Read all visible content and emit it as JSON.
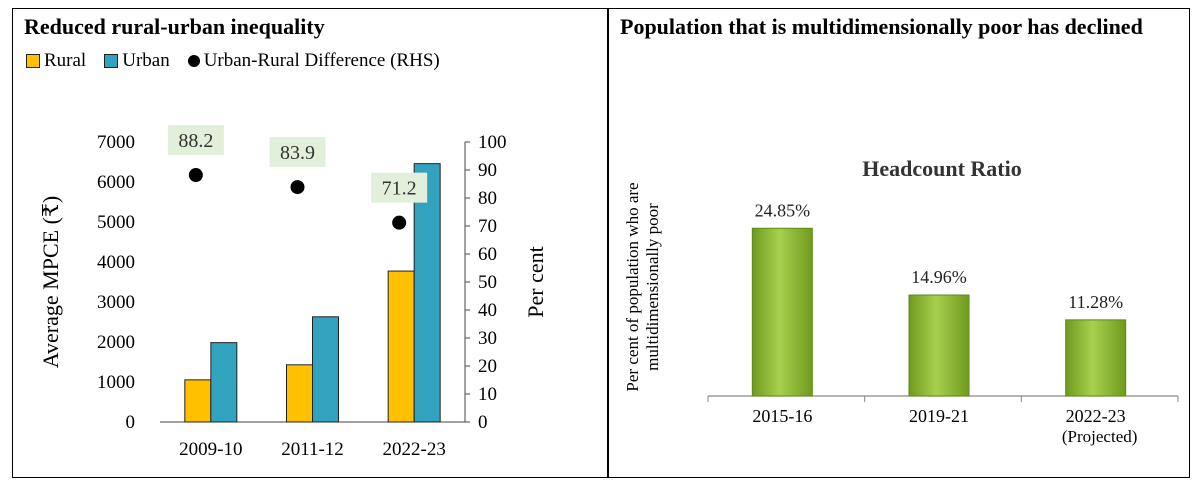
{
  "left_panel": {
    "title": "Reduced rural-urban inequality",
    "legend": {
      "rural": "Rural",
      "urban": "Urban",
      "diff": "Urban-Rural Difference (RHS)"
    }
  },
  "right_panel": {
    "title": "Population that is multidimensionally poor has declined"
  },
  "colors": {
    "rural": "#FFC000",
    "urban": "#31A3BE",
    "dot": "#000000",
    "label_bg": "#E2EFDA",
    "green_bar": "#8DB83A"
  },
  "chart_data": [
    {
      "type": "bar",
      "categories": [
        "2009-10",
        "2011-12",
        "2022-23"
      ],
      "series": [
        {
          "name": "Rural",
          "axis": "left",
          "values": [
            1054,
            1430,
            3773
          ]
        },
        {
          "name": "Urban",
          "axis": "left",
          "values": [
            1984,
            2630,
            6459
          ]
        },
        {
          "name": "Urban-Rural Difference (RHS)",
          "axis": "right",
          "type": "scatter",
          "values": [
            88.2,
            83.9,
            71.2
          ]
        }
      ],
      "ylabel": "Average MPCE (₹)",
      "y2label": "Per cent",
      "ylim": [
        0,
        7000
      ],
      "y2lim": [
        0,
        100
      ],
      "yticks": [
        0,
        1000,
        2000,
        3000,
        4000,
        5000,
        6000,
        7000
      ],
      "y2ticks": [
        0,
        10,
        20,
        30,
        40,
        50,
        60,
        70,
        80,
        90,
        100
      ],
      "data_labels": [
        "88.2",
        "83.9",
        "71.2"
      ],
      "legend_position": "top"
    },
    {
      "type": "bar",
      "title": "Headcount Ratio",
      "categories": [
        "2015-16",
        "2019-21",
        "2022-23"
      ],
      "category_sublabels": [
        "",
        "",
        "(Projected)"
      ],
      "values": [
        24.85,
        14.96,
        11.28
      ],
      "data_labels": [
        "24.85%",
        "14.96%",
        "11.28%"
      ],
      "ylabel_lines": [
        "Per cent of population who are",
        "multidimensionally poor"
      ],
      "ylim": [
        0,
        30
      ]
    }
  ]
}
